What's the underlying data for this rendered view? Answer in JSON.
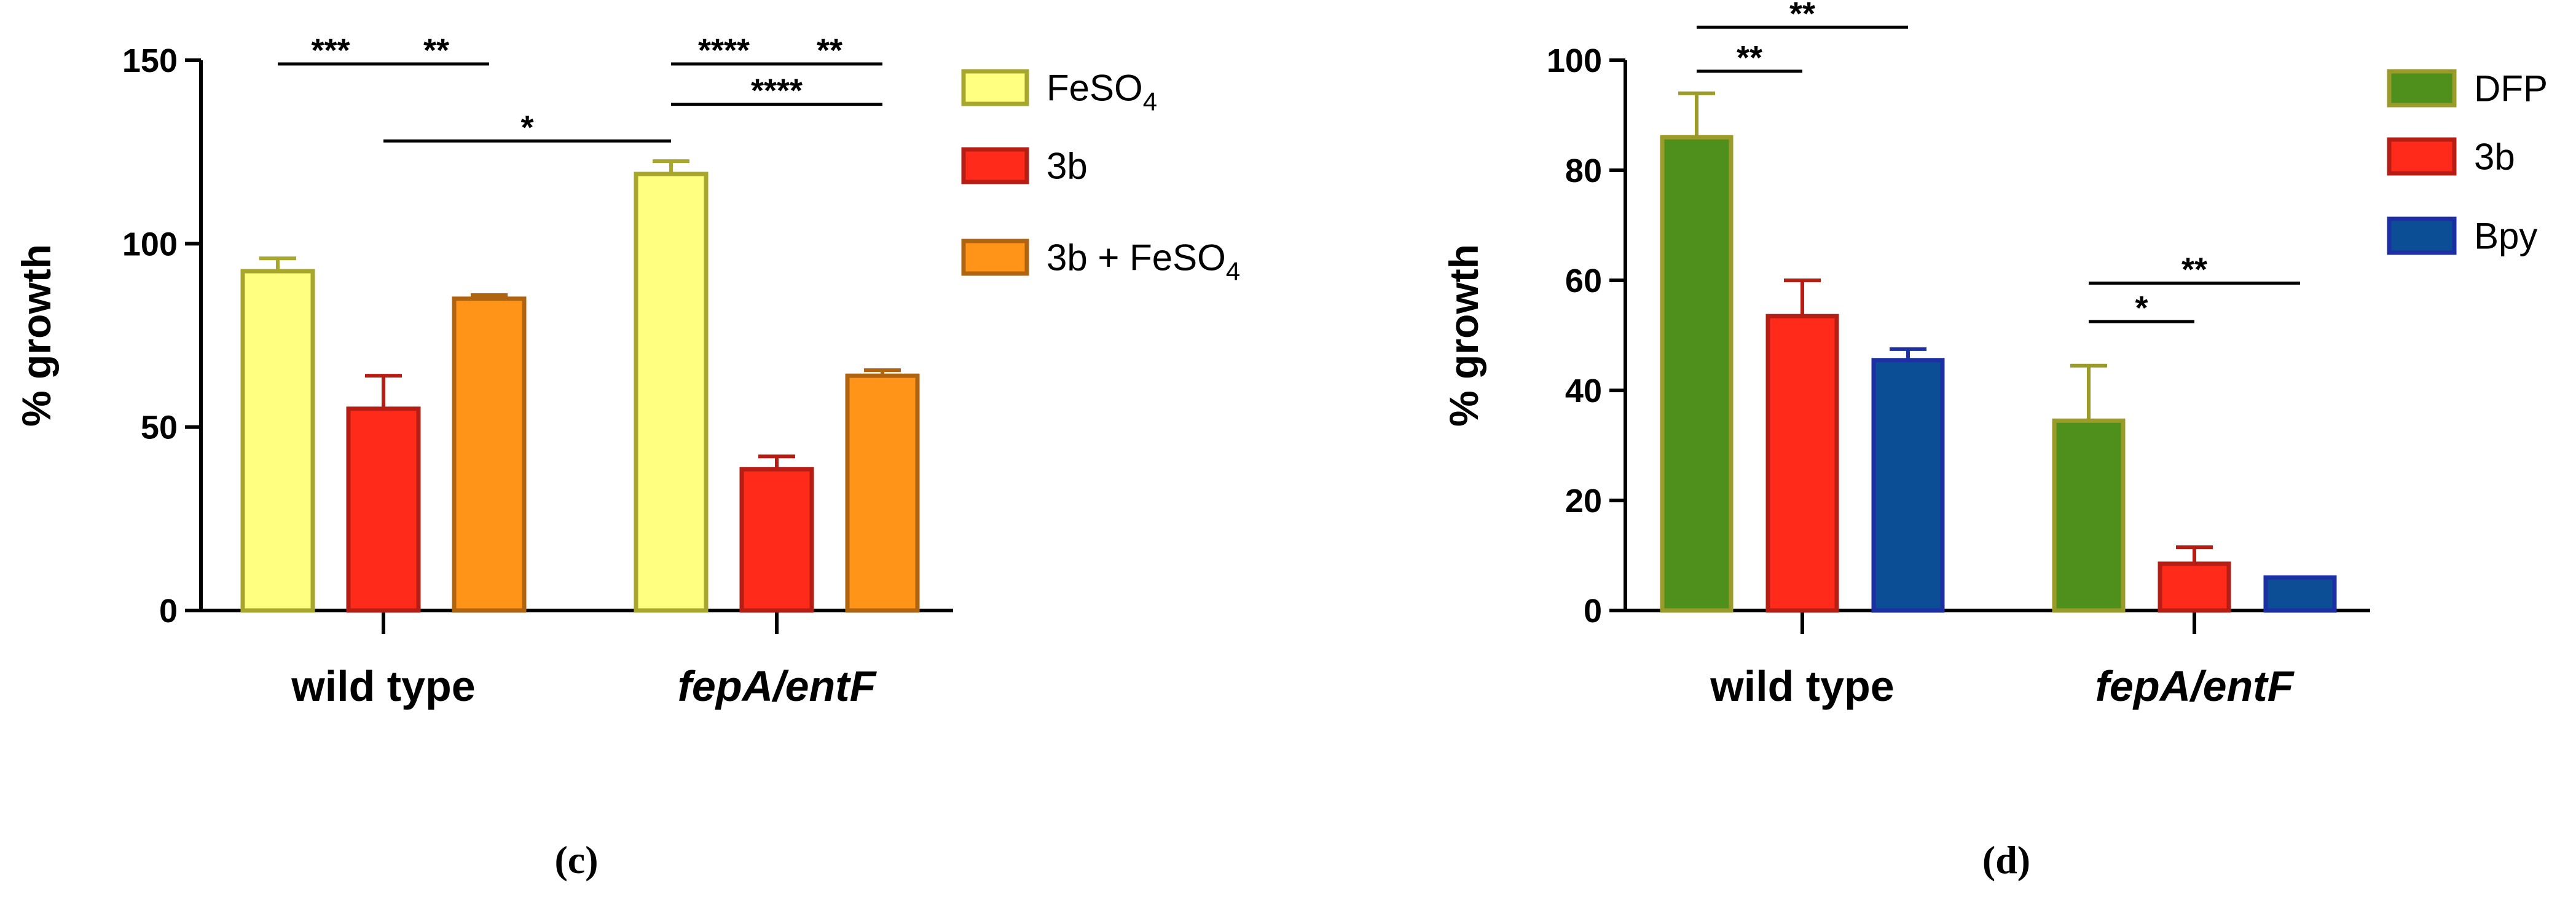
{
  "chart_data": [
    {
      "type": "bar",
      "panel_label": "(c)",
      "ylabel": "% growth",
      "ylim": [
        0,
        150
      ],
      "yticks": [
        "0",
        "50",
        "100",
        "150"
      ],
      "categories": [
        "wild type",
        "fepA/entF"
      ],
      "category_italic": [
        false,
        true
      ],
      "series": [
        {
          "name": "FeSO4",
          "label_main": "FeSO",
          "label_sub": "4",
          "label_tail": "",
          "values": [
            92.5,
            119
          ],
          "errors": [
            3.5,
            3.5
          ],
          "fill": "#FFFF80",
          "stroke": "#A7A72E"
        },
        {
          "name": "3b",
          "label_main": "3b",
          "label_sub": "",
          "label_tail": "",
          "values": [
            55,
            38.5
          ],
          "errors": [
            9,
            3.5
          ],
          "fill": "#FF2A1A",
          "stroke": "#B41E14"
        },
        {
          "name": "3b + FeSO4",
          "label_main": "3b + FeSO",
          "label_sub": "4",
          "label_tail": "",
          "values": [
            85,
            64
          ],
          "errors": [
            1,
            1.5
          ],
          "fill": "#FF9418",
          "stroke": "#B06410"
        }
      ],
      "significance": [
        {
          "from": [
            0,
            0
          ],
          "to": [
            0,
            1
          ],
          "label": "***",
          "y": 149
        },
        {
          "from": [
            0,
            1
          ],
          "to": [
            0,
            2
          ],
          "label": "**",
          "y": 149
        },
        {
          "from": [
            1,
            0
          ],
          "to": [
            1,
            1
          ],
          "label": "****",
          "y": 149
        },
        {
          "from": [
            1,
            1
          ],
          "to": [
            1,
            2
          ],
          "label": "**",
          "y": 149
        },
        {
          "from": [
            1,
            0
          ],
          "to": [
            1,
            2
          ],
          "label": "****",
          "y": 138
        },
        {
          "from": [
            0,
            1
          ],
          "to": [
            1,
            0
          ],
          "label": "*",
          "y": 128
        }
      ]
    },
    {
      "type": "bar",
      "panel_label": "(d)",
      "ylabel": "% growth",
      "ylim": [
        0,
        100
      ],
      "yticks": [
        "0",
        "20",
        "40",
        "60",
        "80",
        "100"
      ],
      "categories": [
        "wild type",
        "fepA/entF"
      ],
      "category_italic": [
        false,
        true
      ],
      "series": [
        {
          "name": "DFP",
          "label_main": "DFP",
          "label_sub": "",
          "label_tail": "",
          "values": [
            86,
            34.5
          ],
          "errors": [
            8,
            10
          ],
          "fill": "#4F8F1B",
          "stroke": "#9B9B2A"
        },
        {
          "name": "3b",
          "label_main": "3b",
          "label_sub": "",
          "label_tail": "",
          "values": [
            53.5,
            8.5
          ],
          "errors": [
            6.5,
            3
          ],
          "fill": "#FF2A1A",
          "stroke": "#B41E14"
        },
        {
          "name": "Bpy",
          "label_main": "Bpy",
          "label_sub": "",
          "label_tail": "",
          "values": [
            45.5,
            6
          ],
          "errors": [
            2,
            0
          ],
          "fill": "#0C4E96",
          "stroke": "#1C2FA3"
        }
      ],
      "significance": [
        {
          "from": [
            0,
            0
          ],
          "to": [
            0,
            1
          ],
          "label": "**",
          "y": 98
        },
        {
          "from": [
            0,
            0
          ],
          "to": [
            0,
            2
          ],
          "label": "**",
          "y": 106
        },
        {
          "from": [
            1,
            0
          ],
          "to": [
            1,
            1
          ],
          "label": "*",
          "y": 52.5
        },
        {
          "from": [
            1,
            0
          ],
          "to": [
            1,
            2
          ],
          "label": "**",
          "y": 59.5
        }
      ]
    }
  ]
}
